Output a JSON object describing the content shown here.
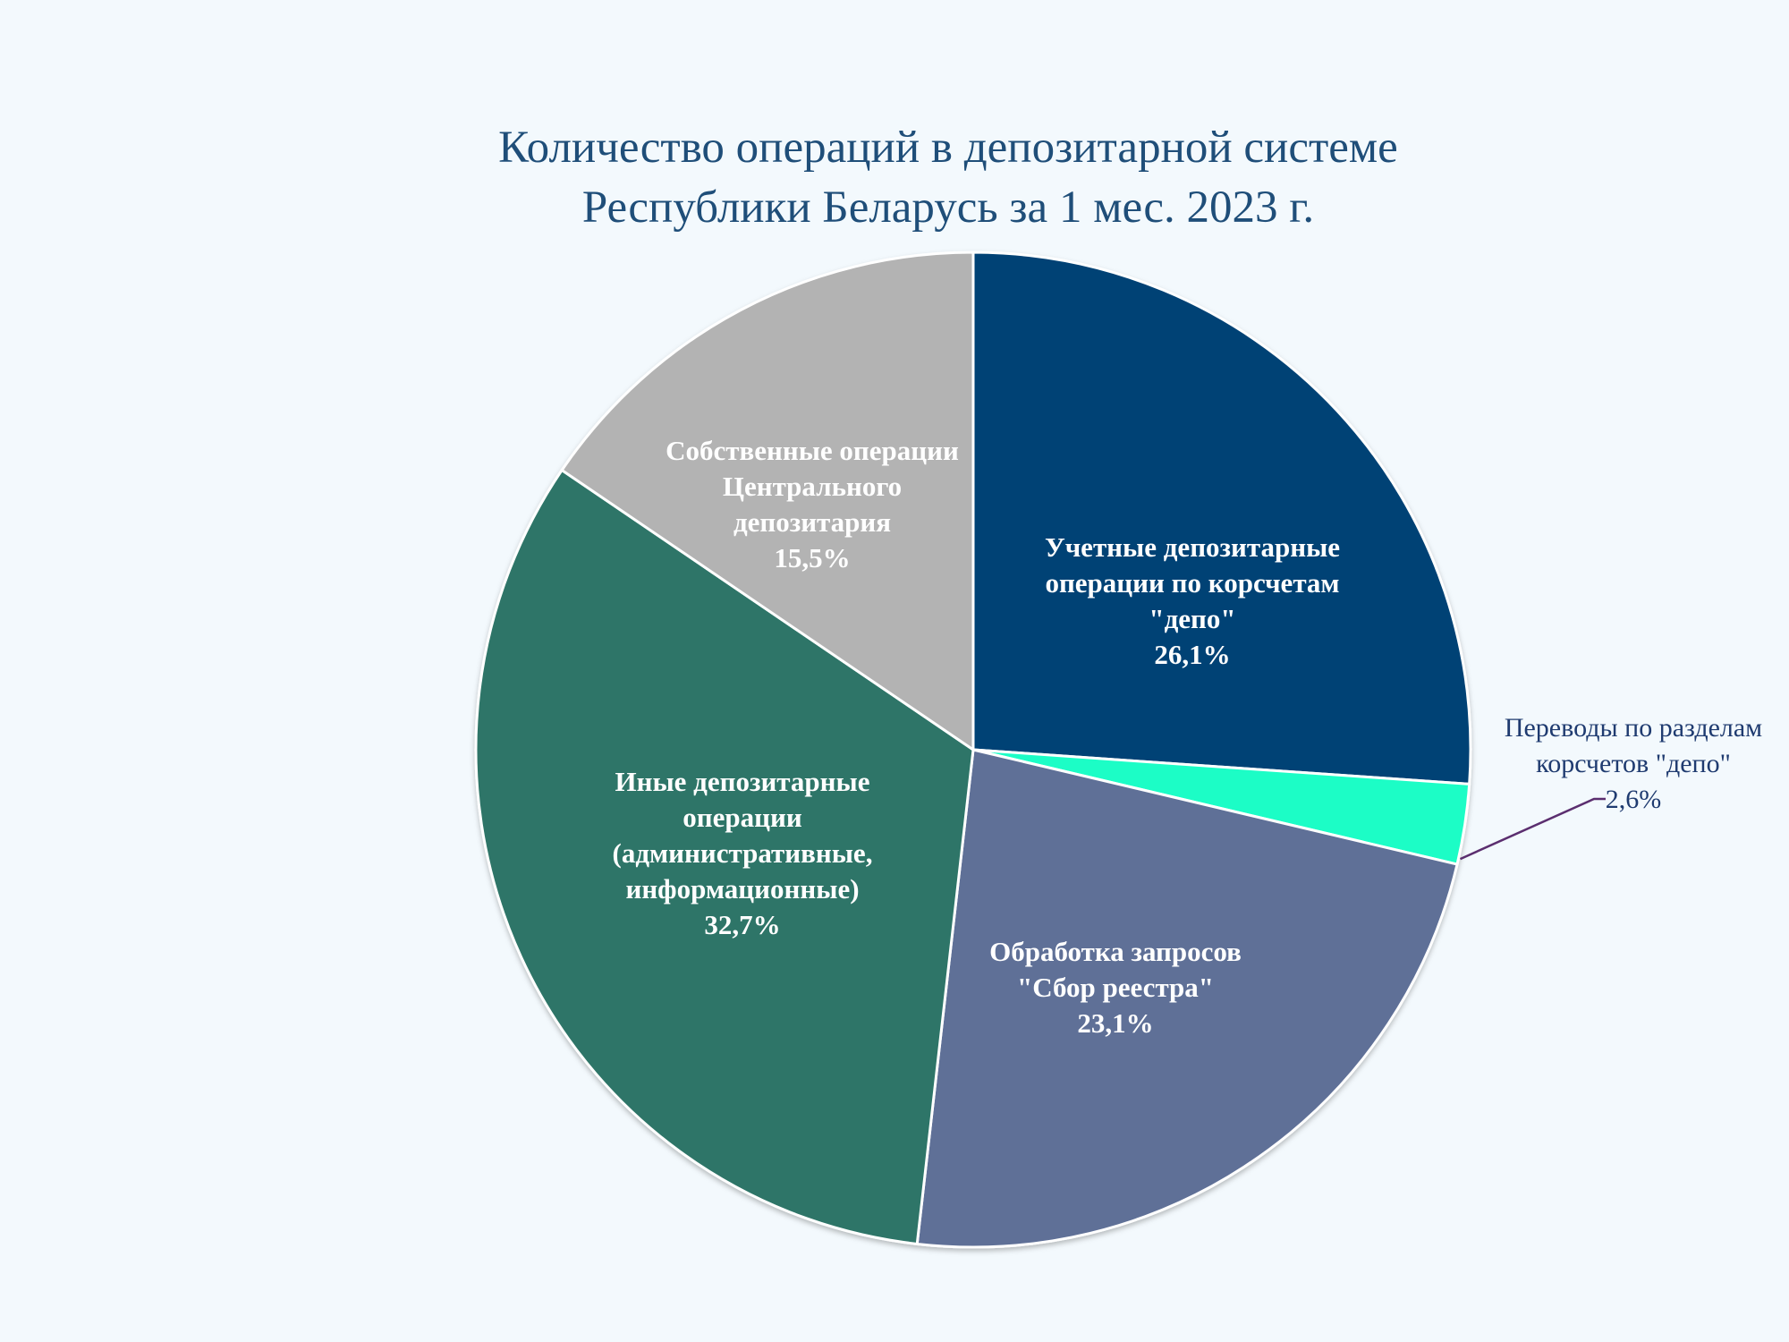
{
  "chart_data": {
    "type": "pie",
    "title_lines": [
      "Количество операций в депозитарной системе",
      "Республики Беларусь за 1 мес. 2023 г."
    ],
    "slices": [
      {
        "label_lines": [
          "Учетные депозитарные",
          "операции по корсчетам",
          "\"депо\""
        ],
        "value": 26.1,
        "value_label": "26,1%",
        "color": "#004274",
        "label_color": "#ffffff",
        "label_bold": true
      },
      {
        "label_lines": [
          "Переводы по разделам",
          "корсчетов \"депо\""
        ],
        "value": 2.6,
        "value_label": "2,6%",
        "color": "#1dfdc6",
        "label_color": "#1f3b70",
        "label_bold": false,
        "leader_color": "#5b2e6f"
      },
      {
        "label_lines": [
          "Обработка запросов",
          "\"Сбор реестра\""
        ],
        "value": 23.1,
        "value_label": "23,1%",
        "color": "#5e7097",
        "label_color": "#ffffff",
        "label_bold": true
      },
      {
        "label_lines": [
          "Иные депозитарные",
          "операции",
          "(административные,",
          "информационные)"
        ],
        "value": 32.7,
        "value_label": "32,7%",
        "color": "#2d7567",
        "label_color": "#ffffff",
        "label_bold": true
      },
      {
        "label_lines": [
          "Собственные операции",
          "Центрального",
          "депозитария"
        ],
        "value": 15.5,
        "value_label": "15,5%",
        "color": "#b3b3b3",
        "label_color": "#ffffff",
        "label_bold": true
      }
    ],
    "start_angle": "12 o'clock",
    "direction": "clockwise",
    "legend": "none",
    "slice_border_color": "#ffffff"
  }
}
